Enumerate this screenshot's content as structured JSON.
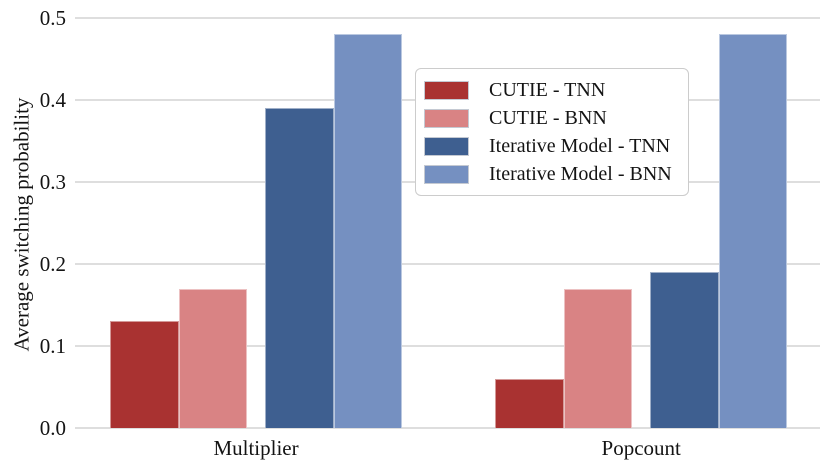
{
  "chart_data": {
    "type": "bar",
    "title": "",
    "xlabel": "",
    "ylabel": "Average switching probability",
    "categories": [
      "Multiplier",
      "Popcount"
    ],
    "series": [
      {
        "name": "CUTIE - TNN",
        "color": "#a93231",
        "values": [
          0.13,
          0.06
        ]
      },
      {
        "name": "CUTIE - BNN",
        "color": "#d98384",
        "values": [
          0.17,
          0.17
        ]
      },
      {
        "name": "Iterative Model - TNN",
        "color": "#3e5f90",
        "values": [
          0.39,
          0.19
        ]
      },
      {
        "name": "Iterative Model - BNN",
        "color": "#7590c1",
        "values": [
          0.48,
          0.48
        ]
      }
    ],
    "ylim": [
      0,
      0.5
    ],
    "yticks": [
      0.0,
      0.1,
      0.2,
      0.3,
      0.4,
      0.5
    ],
    "ytick_labels": [
      "0.0",
      "0.1",
      "0.2",
      "0.3",
      "0.4",
      "0.5"
    ],
    "grid": "horizontal",
    "gridline_color": "#dedede",
    "legend_position": "inside-upper-center",
    "background_color": "#ffffff",
    "text_color": "#141414"
  }
}
